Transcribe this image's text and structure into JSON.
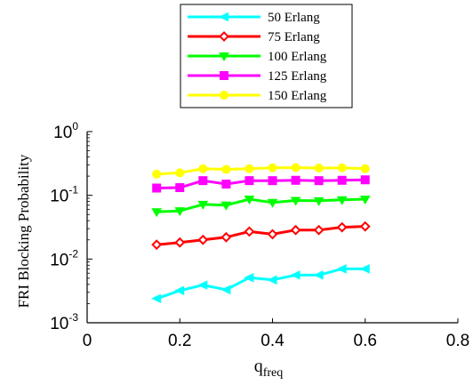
{
  "chart_data": {
    "type": "line",
    "xlabel_main": "q",
    "xlabel_sub": "freq",
    "ylabel": "FRI Blocking Probability",
    "x_scale": "linear",
    "y_scale": "log",
    "xlim": [
      0,
      0.8
    ],
    "ylim": [
      0.001,
      1
    ],
    "x_ticks": [
      {
        "value": 0,
        "label": "0"
      },
      {
        "value": 0.2,
        "label": "0.2"
      },
      {
        "value": 0.4,
        "label": "0.4"
      },
      {
        "value": 0.6,
        "label": "0.6"
      },
      {
        "value": 0.8,
        "label": "0.8"
      }
    ],
    "y_ticks": [
      {
        "value": 0.001,
        "base": "10",
        "exp": "-3"
      },
      {
        "value": 0.01,
        "base": "10",
        "exp": "-2"
      },
      {
        "value": 0.1,
        "base": "10",
        "exp": "-1"
      },
      {
        "value": 1,
        "base": "10",
        "exp": "0"
      }
    ],
    "grid": false,
    "legend_position": "top",
    "x": [
      0.15,
      0.2,
      0.25,
      0.3,
      0.35,
      0.4,
      0.45,
      0.5,
      0.55,
      0.6
    ],
    "series": [
      {
        "name": "50 Erlang",
        "color": "#00ffff",
        "marker": "triangle-left",
        "values": [
          0.0024,
          0.0032,
          0.0039,
          0.0033,
          0.0051,
          0.0047,
          0.0056,
          0.0056,
          0.007,
          0.007
        ]
      },
      {
        "name": "75 Erlang",
        "color": "#ff0000",
        "marker": "diamond",
        "values": [
          0.0168,
          0.0182,
          0.02,
          0.022,
          0.027,
          0.0245,
          0.0285,
          0.0285,
          0.0315,
          0.0325
        ]
      },
      {
        "name": "100 Erlang",
        "color": "#00ff00",
        "marker": "triangle-down",
        "values": [
          0.055,
          0.057,
          0.072,
          0.07,
          0.087,
          0.077,
          0.083,
          0.082,
          0.085,
          0.087
        ]
      },
      {
        "name": "125 Erlang",
        "color": "#ff00ff",
        "marker": "square",
        "values": [
          0.13,
          0.132,
          0.17,
          0.15,
          0.17,
          0.17,
          0.172,
          0.17,
          0.172,
          0.175
        ]
      },
      {
        "name": "150 Erlang",
        "color": "#ffff00",
        "marker": "circle",
        "values": [
          0.215,
          0.225,
          0.262,
          0.255,
          0.262,
          0.27,
          0.272,
          0.268,
          0.27,
          0.262
        ]
      }
    ]
  }
}
